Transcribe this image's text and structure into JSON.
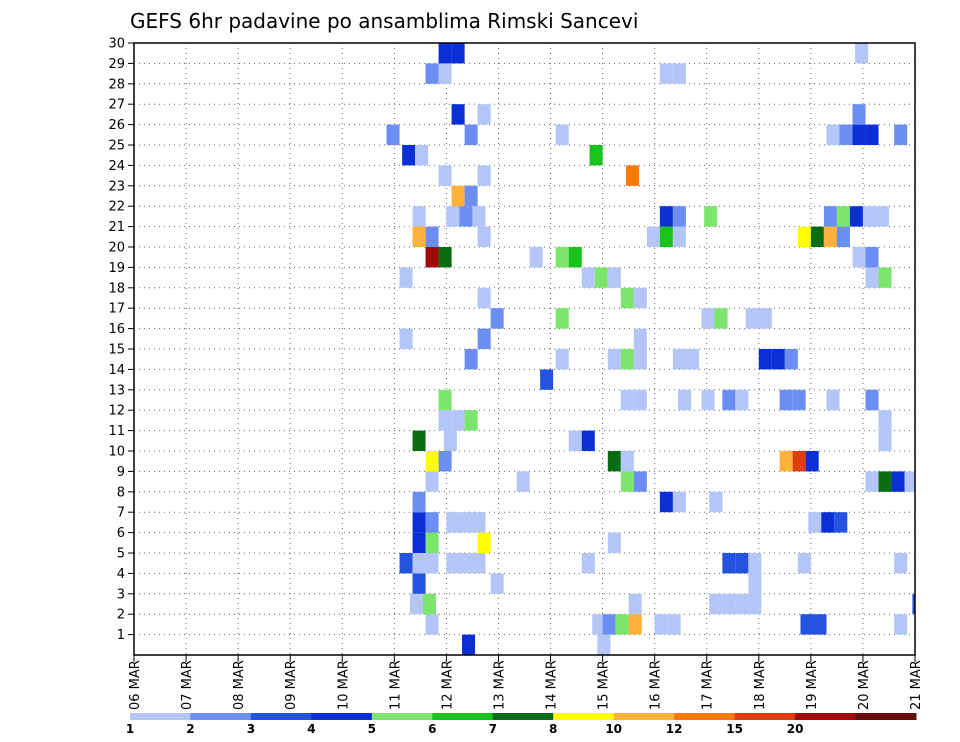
{
  "chart_data": {
    "type": "heatmap",
    "title": "GEFS 6hr padavine po ansamblima Rimski Sancevi",
    "x_labels": [
      "06 MAR",
      "07 MAR",
      "08 MAR",
      "09 MAR",
      "10 MAR",
      "11 MAR",
      "12 MAR",
      "13 MAR",
      "14 MAR",
      "15 MAR",
      "16 MAR",
      "17 MAR",
      "18 MAR",
      "19 MAR",
      "20 MAR",
      "21 MAR"
    ],
    "y_labels": [
      "1",
      "2",
      "3",
      "4",
      "5",
      "6",
      "7",
      "8",
      "9",
      "10",
      "11",
      "12",
      "13",
      "14",
      "15",
      "16",
      "17",
      "18",
      "19",
      "20",
      "21",
      "22",
      "23",
      "24",
      "25",
      "26",
      "27",
      "28",
      "29",
      "30"
    ],
    "xlim": [
      0,
      15
    ],
    "ylim": [
      0,
      30
    ],
    "grid": true,
    "colorbar": {
      "labels": [
        "1",
        "2",
        "3",
        "4",
        "5",
        "6",
        "7",
        "8",
        "10",
        "12",
        "15",
        "20"
      ],
      "colors": [
        "#b3c6f7",
        "#6b8ef2",
        "#2453e0",
        "#0a2fd6",
        "#7be66b",
        "#18c41c",
        "#0a6d14",
        "#ffff00",
        "#ffb13a",
        "#ff7a05",
        "#e03c0c",
        "#a00a0a",
        "#6b0a0a"
      ]
    },
    "cells": [
      {
        "x": 6.3,
        "y": 0,
        "v": 4
      },
      {
        "x": 8.9,
        "y": 0,
        "v": 1
      },
      {
        "x": 5.6,
        "y": 1,
        "v": 1
      },
      {
        "x": 8.8,
        "y": 1,
        "v": 1
      },
      {
        "x": 9.0,
        "y": 1,
        "v": 2
      },
      {
        "x": 9.25,
        "y": 1,
        "v": 5
      },
      {
        "x": 9.5,
        "y": 1,
        "v": 10
      },
      {
        "x": 10.0,
        "y": 1,
        "v": 1
      },
      {
        "x": 10.25,
        "y": 1,
        "v": 1
      },
      {
        "x": 12.8,
        "y": 1,
        "v": 3
      },
      {
        "x": 13.05,
        "y": 1,
        "v": 3
      },
      {
        "x": 14.6,
        "y": 1,
        "v": 1
      },
      {
        "x": 5.3,
        "y": 2,
        "v": 1
      },
      {
        "x": 5.55,
        "y": 2,
        "v": 5
      },
      {
        "x": 9.5,
        "y": 2,
        "v": 1
      },
      {
        "x": 11.05,
        "y": 2,
        "v": 1
      },
      {
        "x": 11.3,
        "y": 2,
        "v": 1
      },
      {
        "x": 11.55,
        "y": 2,
        "v": 1
      },
      {
        "x": 11.8,
        "y": 2,
        "v": 1
      },
      {
        "x": 14.95,
        "y": 2,
        "v": 3
      },
      {
        "x": 5.35,
        "y": 3,
        "v": 3
      },
      {
        "x": 6.85,
        "y": 3,
        "v": 1
      },
      {
        "x": 11.8,
        "y": 3,
        "v": 1
      },
      {
        "x": 5.1,
        "y": 4,
        "v": 3
      },
      {
        "x": 5.35,
        "y": 4,
        "v": 1
      },
      {
        "x": 5.6,
        "y": 4,
        "v": 1
      },
      {
        "x": 6.0,
        "y": 4,
        "v": 1
      },
      {
        "x": 6.25,
        "y": 4,
        "v": 1
      },
      {
        "x": 6.5,
        "y": 4,
        "v": 1
      },
      {
        "x": 8.6,
        "y": 4,
        "v": 1
      },
      {
        "x": 11.3,
        "y": 4,
        "v": 3
      },
      {
        "x": 11.55,
        "y": 4,
        "v": 3
      },
      {
        "x": 11.8,
        "y": 4,
        "v": 1
      },
      {
        "x": 12.75,
        "y": 4,
        "v": 1
      },
      {
        "x": 14.6,
        "y": 4,
        "v": 1
      },
      {
        "x": 5.35,
        "y": 5,
        "v": 4
      },
      {
        "x": 5.6,
        "y": 5,
        "v": 5
      },
      {
        "x": 6.6,
        "y": 5,
        "v": 8
      },
      {
        "x": 9.1,
        "y": 5,
        "v": 1
      },
      {
        "x": 5.35,
        "y": 6,
        "v": 4
      },
      {
        "x": 5.6,
        "y": 6,
        "v": 2
      },
      {
        "x": 6.0,
        "y": 6,
        "v": 1
      },
      {
        "x": 6.25,
        "y": 6,
        "v": 1
      },
      {
        "x": 6.5,
        "y": 6,
        "v": 1
      },
      {
        "x": 12.95,
        "y": 6,
        "v": 1
      },
      {
        "x": 13.2,
        "y": 6,
        "v": 4
      },
      {
        "x": 13.45,
        "y": 6,
        "v": 3
      },
      {
        "x": 5.35,
        "y": 7,
        "v": 2
      },
      {
        "x": 10.1,
        "y": 7,
        "v": 4
      },
      {
        "x": 10.35,
        "y": 7,
        "v": 1
      },
      {
        "x": 11.05,
        "y": 7,
        "v": 1
      },
      {
        "x": 5.6,
        "y": 8,
        "v": 1
      },
      {
        "x": 7.35,
        "y": 8,
        "v": 1
      },
      {
        "x": 9.35,
        "y": 8,
        "v": 5
      },
      {
        "x": 9.6,
        "y": 8,
        "v": 2
      },
      {
        "x": 14.05,
        "y": 8,
        "v": 1
      },
      {
        "x": 14.3,
        "y": 8,
        "v": 7
      },
      {
        "x": 14.55,
        "y": 8,
        "v": 4
      },
      {
        "x": 14.8,
        "y": 8,
        "v": 1
      },
      {
        "x": 5.6,
        "y": 9,
        "v": 8
      },
      {
        "x": 5.85,
        "y": 9,
        "v": 2
      },
      {
        "x": 9.1,
        "y": 9,
        "v": 7
      },
      {
        "x": 9.35,
        "y": 9,
        "v": 1
      },
      {
        "x": 12.4,
        "y": 9,
        "v": 10
      },
      {
        "x": 12.65,
        "y": 9,
        "v": 15
      },
      {
        "x": 12.9,
        "y": 9,
        "v": 4
      },
      {
        "x": 5.35,
        "y": 10,
        "v": 7
      },
      {
        "x": 5.95,
        "y": 10,
        "v": 1
      },
      {
        "x": 8.35,
        "y": 10,
        "v": 1
      },
      {
        "x": 8.6,
        "y": 10,
        "v": 4
      },
      {
        "x": 14.3,
        "y": 10,
        "v": 1
      },
      {
        "x": 5.85,
        "y": 11,
        "v": 1
      },
      {
        "x": 6.1,
        "y": 11,
        "v": 1
      },
      {
        "x": 6.35,
        "y": 11,
        "v": 5
      },
      {
        "x": 14.3,
        "y": 11,
        "v": 1
      },
      {
        "x": 5.85,
        "y": 12,
        "v": 5
      },
      {
        "x": 9.35,
        "y": 12,
        "v": 1
      },
      {
        "x": 9.6,
        "y": 12,
        "v": 1
      },
      {
        "x": 10.45,
        "y": 12,
        "v": 1
      },
      {
        "x": 10.9,
        "y": 12,
        "v": 1
      },
      {
        "x": 11.3,
        "y": 12,
        "v": 2
      },
      {
        "x": 11.55,
        "y": 12,
        "v": 1
      },
      {
        "x": 12.4,
        "y": 12,
        "v": 2
      },
      {
        "x": 12.65,
        "y": 12,
        "v": 2
      },
      {
        "x": 13.3,
        "y": 12,
        "v": 1
      },
      {
        "x": 14.05,
        "y": 12,
        "v": 2
      },
      {
        "x": 7.8,
        "y": 13,
        "v": 3
      },
      {
        "x": 6.35,
        "y": 14,
        "v": 2
      },
      {
        "x": 8.1,
        "y": 14,
        "v": 1
      },
      {
        "x": 9.1,
        "y": 14,
        "v": 1
      },
      {
        "x": 9.35,
        "y": 14,
        "v": 5
      },
      {
        "x": 9.6,
        "y": 14,
        "v": 1
      },
      {
        "x": 10.35,
        "y": 14,
        "v": 1
      },
      {
        "x": 10.6,
        "y": 14,
        "v": 1
      },
      {
        "x": 12.0,
        "y": 14,
        "v": 4
      },
      {
        "x": 12.25,
        "y": 14,
        "v": 4
      },
      {
        "x": 12.5,
        "y": 14,
        "v": 2
      },
      {
        "x": 5.1,
        "y": 15,
        "v": 1
      },
      {
        "x": 6.6,
        "y": 15,
        "v": 2
      },
      {
        "x": 9.6,
        "y": 15,
        "v": 1
      },
      {
        "x": 6.85,
        "y": 16,
        "v": 2
      },
      {
        "x": 8.1,
        "y": 16,
        "v": 5
      },
      {
        "x": 10.9,
        "y": 16,
        "v": 1
      },
      {
        "x": 11.15,
        "y": 16,
        "v": 5
      },
      {
        "x": 11.75,
        "y": 16,
        "v": 1
      },
      {
        "x": 12.0,
        "y": 16,
        "v": 1
      },
      {
        "x": 6.6,
        "y": 17,
        "v": 1
      },
      {
        "x": 9.35,
        "y": 17,
        "v": 5
      },
      {
        "x": 9.6,
        "y": 17,
        "v": 1
      },
      {
        "x": 5.1,
        "y": 18,
        "v": 1
      },
      {
        "x": 8.6,
        "y": 18,
        "v": 1
      },
      {
        "x": 8.85,
        "y": 18,
        "v": 5
      },
      {
        "x": 9.1,
        "y": 18,
        "v": 1
      },
      {
        "x": 14.05,
        "y": 18,
        "v": 1
      },
      {
        "x": 14.3,
        "y": 18,
        "v": 5
      },
      {
        "x": 5.6,
        "y": 19,
        "v": 20
      },
      {
        "x": 5.85,
        "y": 19,
        "v": 7
      },
      {
        "x": 7.6,
        "y": 19,
        "v": 1
      },
      {
        "x": 8.1,
        "y": 19,
        "v": 5
      },
      {
        "x": 8.35,
        "y": 19,
        "v": 6
      },
      {
        "x": 13.8,
        "y": 19,
        "v": 1
      },
      {
        "x": 14.05,
        "y": 19,
        "v": 2
      },
      {
        "x": 5.35,
        "y": 20,
        "v": 10
      },
      {
        "x": 5.6,
        "y": 20,
        "v": 2
      },
      {
        "x": 6.6,
        "y": 20,
        "v": 1
      },
      {
        "x": 9.85,
        "y": 20,
        "v": 1
      },
      {
        "x": 10.1,
        "y": 20,
        "v": 6
      },
      {
        "x": 10.35,
        "y": 20,
        "v": 1
      },
      {
        "x": 12.75,
        "y": 20,
        "v": 8
      },
      {
        "x": 13.0,
        "y": 20,
        "v": 7
      },
      {
        "x": 13.25,
        "y": 20,
        "v": 10
      },
      {
        "x": 13.5,
        "y": 20,
        "v": 2
      },
      {
        "x": 5.35,
        "y": 21,
        "v": 1
      },
      {
        "x": 6.0,
        "y": 21,
        "v": 1
      },
      {
        "x": 6.25,
        "y": 21,
        "v": 2
      },
      {
        "x": 6.5,
        "y": 21,
        "v": 1
      },
      {
        "x": 10.1,
        "y": 21,
        "v": 4
      },
      {
        "x": 10.35,
        "y": 21,
        "v": 2
      },
      {
        "x": 10.95,
        "y": 21,
        "v": 5
      },
      {
        "x": 13.25,
        "y": 21,
        "v": 2
      },
      {
        "x": 13.5,
        "y": 21,
        "v": 5
      },
      {
        "x": 13.75,
        "y": 21,
        "v": 4
      },
      {
        "x": 14.0,
        "y": 21,
        "v": 1
      },
      {
        "x": 14.25,
        "y": 21,
        "v": 1
      },
      {
        "x": 6.1,
        "y": 22,
        "v": 10
      },
      {
        "x": 6.35,
        "y": 22,
        "v": 2
      },
      {
        "x": 5.85,
        "y": 23,
        "v": 1
      },
      {
        "x": 6.6,
        "y": 23,
        "v": 1
      },
      {
        "x": 9.45,
        "y": 23,
        "v": 12
      },
      {
        "x": 5.15,
        "y": 24,
        "v": 4
      },
      {
        "x": 5.4,
        "y": 24,
        "v": 1
      },
      {
        "x": 8.75,
        "y": 24,
        "v": 6
      },
      {
        "x": 4.85,
        "y": 25,
        "v": 2
      },
      {
        "x": 6.35,
        "y": 25,
        "v": 2
      },
      {
        "x": 8.1,
        "y": 25,
        "v": 1
      },
      {
        "x": 13.3,
        "y": 25,
        "v": 1
      },
      {
        "x": 13.55,
        "y": 25,
        "v": 2
      },
      {
        "x": 13.8,
        "y": 25,
        "v": 4
      },
      {
        "x": 14.05,
        "y": 25,
        "v": 4
      },
      {
        "x": 14.6,
        "y": 25,
        "v": 2
      },
      {
        "x": 6.1,
        "y": 26,
        "v": 4
      },
      {
        "x": 6.6,
        "y": 26,
        "v": 1
      },
      {
        "x": 13.8,
        "y": 26,
        "v": 2
      },
      {
        "x": 5.6,
        "y": 28,
        "v": 2
      },
      {
        "x": 5.85,
        "y": 28,
        "v": 1
      },
      {
        "x": 10.1,
        "y": 28,
        "v": 1
      },
      {
        "x": 10.35,
        "y": 28,
        "v": 1
      },
      {
        "x": 5.85,
        "y": 29,
        "v": 4
      },
      {
        "x": 6.1,
        "y": 29,
        "v": 4
      },
      {
        "x": 13.85,
        "y": 29,
        "v": 1
      }
    ]
  }
}
